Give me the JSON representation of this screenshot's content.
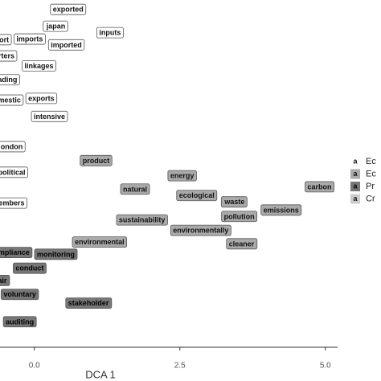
{
  "chart_data": {
    "type": "scatter",
    "xlabel": "DCA 1",
    "xlim": [
      -0.59,
      5.21
    ],
    "ylim": [
      0,
      5.97
    ],
    "xticks": [
      {
        "value": 0,
        "label": "0.0"
      },
      {
        "value": 2.5,
        "label": "2.5"
      },
      {
        "value": 5,
        "label": "5.0"
      }
    ],
    "legend_key": "a",
    "series": [
      {
        "name": "Ec",
        "color": "#ffffff",
        "text_color": "#111111",
        "labels": [
          "exported",
          "japan",
          "inputs",
          "ort",
          "imports",
          "imported",
          "rters",
          "linkages",
          "ading",
          "mestic",
          "exports",
          "intensive",
          "ondon",
          "political",
          "embers"
        ],
        "x": [
          0.58,
          0.37,
          1.3,
          -0.52,
          -0.08,
          0.55,
          -0.48,
          0.08,
          -0.46,
          -0.43,
          0.12,
          0.26,
          -0.39,
          -0.39,
          -0.39
        ],
        "y": [
          5.8,
          5.51,
          5.4,
          5.28,
          5.29,
          5.19,
          5.0,
          4.83,
          4.59,
          4.24,
          4.27,
          3.96,
          3.44,
          3.0,
          2.47
        ]
      },
      {
        "name": "Ec",
        "color": "#aaaaaa",
        "text_color": "#111111",
        "labels": [
          "product",
          "natural",
          "energy",
          "ecological",
          "waste",
          "carbon",
          "sustainability",
          "pollution",
          "emissions",
          "environmentally",
          "environmental",
          "cleaner"
        ],
        "x": [
          1.06,
          1.73,
          2.54,
          2.79,
          3.44,
          4.9,
          1.85,
          3.52,
          4.24,
          2.86,
          1.12,
          3.56
        ],
        "y": [
          3.2,
          2.71,
          2.94,
          2.6,
          2.49,
          2.75,
          2.18,
          2.24,
          2.35,
          2.0,
          1.8,
          1.77
        ]
      },
      {
        "name": "Pr",
        "color": "#777777",
        "text_color": "#000000",
        "labels": [
          "mpliance",
          "monitoring",
          "conduct",
          "air",
          "voluntary",
          "stakeholder",
          "auditing"
        ],
        "x": [
          -0.35,
          0.37,
          -0.08,
          -0.55,
          -0.25,
          0.93,
          -0.25
        ],
        "y": [
          1.62,
          1.59,
          1.35,
          1.14,
          0.9,
          0.75,
          0.43
        ]
      },
      {
        "name": "Cr",
        "color": "#cccccc",
        "text_color": "#111111",
        "labels": [],
        "x": [],
        "y": []
      }
    ]
  }
}
